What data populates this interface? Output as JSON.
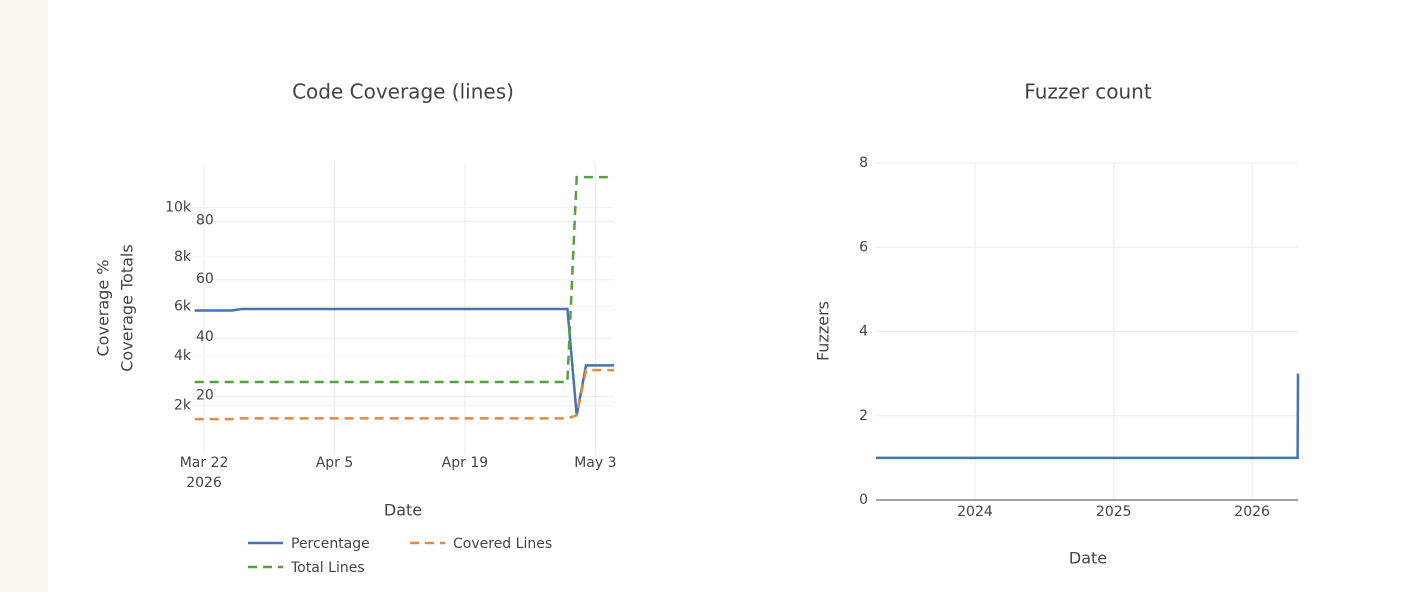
{
  "chart_data": [
    {
      "type": "line",
      "title": "Code Coverage (lines)",
      "x_label": "Date",
      "y_label": "Coverage %",
      "y2_label": "Coverage Totals",
      "x": [
        "2026-03-21",
        "2026-03-25",
        "2026-03-26",
        "2026-04-30",
        "2026-05-01",
        "2026-05-02",
        "2026-05-05"
      ],
      "xlim": [
        "2026-03-20T17:00:00Z",
        "2026-05-05T00:00:00Z"
      ],
      "xticks": [
        {
          "value": "2026-03-22",
          "label": "Mar 22"
        },
        {
          "value": "2026-04-05",
          "label": "Apr 5"
        },
        {
          "value": "2026-04-19",
          "label": "Apr 19"
        },
        {
          "value": "2026-05-03",
          "label": "May 3"
        }
      ],
      "x_tick_sublabel": "2026",
      "ylim": [
        0,
        100
      ],
      "yticks": [
        20,
        40,
        60,
        80
      ],
      "y2lim": [
        0,
        11800
      ],
      "y2ticks": [
        {
          "value": 2000,
          "label": "2k"
        },
        {
          "value": 4000,
          "label": "4k"
        },
        {
          "value": 6000,
          "label": "6k"
        },
        {
          "value": 8000,
          "label": "8k"
        },
        {
          "value": 10000,
          "label": "10k"
        }
      ],
      "grid": true,
      "series": [
        {
          "name": "Percentage",
          "color": "#4472b4",
          "dash": "solid",
          "axis": "y",
          "values": [
            49.5,
            49.5,
            50,
            50,
            13.6,
            30.7,
            30.7
          ]
        },
        {
          "name": "Covered Lines",
          "color": "#e8883a",
          "dash": "dash",
          "axis": "y2",
          "values": [
            1450,
            1450,
            1480,
            1480,
            1600,
            3430,
            3430
          ]
        },
        {
          "name": "Total Lines",
          "color": "#56a040",
          "dash": "dash",
          "axis": "y2",
          "values": [
            2950,
            2950,
            2950,
            2950,
            11230,
            11230,
            11230
          ]
        }
      ]
    },
    {
      "type": "line",
      "title": "Fuzzer count",
      "x_label": "Date",
      "y_label": "Fuzzers",
      "x": [
        "2023-04-15",
        "2026-05-01",
        "2026-05-02"
      ],
      "xlim": [
        "2023-04-15T00:00:00Z",
        "2026-05-02T00:00:00Z"
      ],
      "xticks": [
        {
          "value": "2024-01-01",
          "label": "2024"
        },
        {
          "value": "2025-01-01",
          "label": "2025"
        },
        {
          "value": "2026-01-01",
          "label": "2026"
        }
      ],
      "ylim": [
        0,
        8
      ],
      "yticks": [
        0,
        2,
        4,
        6,
        8
      ],
      "grid": true,
      "series": [
        {
          "name": "Fuzzers",
          "color": "#4472b4",
          "dash": "solid",
          "axis": "y",
          "values": [
            1,
            1,
            3
          ]
        }
      ]
    }
  ]
}
